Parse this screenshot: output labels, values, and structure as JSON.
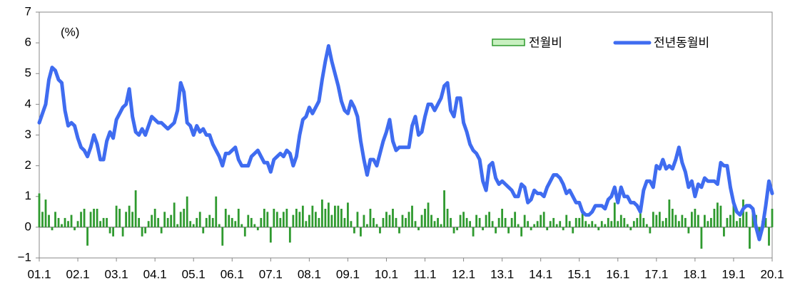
{
  "chart_data": {
    "type": "bar-line",
    "unit_label": "(%)",
    "categories": [
      "01.1",
      null,
      null,
      null,
      null,
      null,
      null,
      null,
      null,
      null,
      null,
      null,
      "02.1",
      null,
      null,
      null,
      null,
      null,
      null,
      null,
      null,
      null,
      null,
      null,
      "03.1",
      null,
      null,
      null,
      null,
      null,
      null,
      null,
      null,
      null,
      null,
      null,
      "04.1",
      null,
      null,
      null,
      null,
      null,
      null,
      null,
      null,
      null,
      null,
      null,
      "05.1",
      null,
      null,
      null,
      null,
      null,
      null,
      null,
      null,
      null,
      null,
      null,
      "06.1",
      null,
      null,
      null,
      null,
      null,
      null,
      null,
      null,
      null,
      null,
      null,
      "07.1",
      null,
      null,
      null,
      null,
      null,
      null,
      null,
      null,
      null,
      null,
      null,
      "08.1",
      null,
      null,
      null,
      null,
      null,
      null,
      null,
      null,
      null,
      null,
      null,
      "09.1",
      null,
      null,
      null,
      null,
      null,
      null,
      null,
      null,
      null,
      null,
      null,
      "10.1",
      null,
      null,
      null,
      null,
      null,
      null,
      null,
      null,
      null,
      null,
      null,
      "11.1",
      null,
      null,
      null,
      null,
      null,
      null,
      null,
      null,
      null,
      null,
      null,
      "12.1",
      null,
      null,
      null,
      null,
      null,
      null,
      null,
      null,
      null,
      null,
      null,
      "13.1",
      null,
      null,
      null,
      null,
      null,
      null,
      null,
      null,
      null,
      null,
      null,
      "14.1",
      null,
      null,
      null,
      null,
      null,
      null,
      null,
      null,
      null,
      null,
      null,
      "15.1",
      null,
      null,
      null,
      null,
      null,
      null,
      null,
      null,
      null,
      null,
      null,
      "16.1",
      null,
      null,
      null,
      null,
      null,
      null,
      null,
      null,
      null,
      null,
      null,
      "17.1",
      null,
      null,
      null,
      null,
      null,
      null,
      null,
      null,
      null,
      null,
      null,
      "18.1",
      null,
      null,
      null,
      null,
      null,
      null,
      null,
      null,
      null,
      null,
      null,
      "19.1",
      null,
      null,
      null,
      null,
      null,
      null,
      null,
      null,
      null,
      null,
      null,
      "20.1"
    ],
    "series": [
      {
        "name": "전월비",
        "kind": "bar",
        "color": "#2f9a2f",
        "values": [
          1.1,
          0.5,
          0.9,
          0.4,
          -0.1,
          0.5,
          0.3,
          0.1,
          0.3,
          0.2,
          0.4,
          -0.1,
          0.2,
          0.5,
          0.6,
          -0.6,
          0.5,
          0.6,
          0.6,
          0.2,
          0.3,
          0.3,
          -0.2,
          -0.3,
          0.7,
          0.6,
          -0.3,
          0.5,
          0.7,
          0.5,
          1.2,
          0.3,
          -0.3,
          -0.2,
          0.2,
          0.4,
          0.6,
          0.3,
          -0.2,
          0.5,
          0.3,
          0.4,
          0.8,
          0.1,
          0.5,
          0.6,
          1.0,
          0.2,
          0.1,
          0.3,
          0.5,
          -0.2,
          0.3,
          0.4,
          0.3,
          1.0,
          0.1,
          -0.6,
          0.6,
          0.4,
          0.3,
          0.2,
          0.6,
          0.1,
          -0.3,
          0.4,
          0.3,
          0.1,
          -0.1,
          0.3,
          0.6,
          0.5,
          -0.5,
          0.6,
          0.5,
          0.3,
          0.5,
          0.6,
          -0.5,
          0.4,
          0.6,
          0.5,
          0.7,
          0.2,
          0.4,
          0.7,
          0.5,
          0.3,
          0.9,
          0.6,
          0.8,
          0.4,
          0.7,
          0.7,
          0.6,
          0.3,
          0.8,
          0.2,
          -0.2,
          0.5,
          -0.3,
          0.4,
          0.1,
          0.6,
          0.3,
          0.1,
          -0.2,
          0.3,
          0.5,
          0.4,
          0.6,
          0.3,
          -0.2,
          0.4,
          0.3,
          0.5,
          0.7,
          0.2,
          -0.1,
          0.4,
          0.6,
          0.8,
          0.4,
          0.2,
          0.3,
          0.1,
          1.2,
          0.6,
          0.3,
          -0.2,
          -0.1,
          0.4,
          0.5,
          0.3,
          0.2,
          -0.3,
          0.4,
          0.3,
          -0.1,
          0.4,
          0.5,
          0.2,
          -0.2,
          0.3,
          0.6,
          0.3,
          -0.2,
          0.3,
          0.5,
          0.1,
          -0.3,
          0.4,
          0.2,
          -0.1,
          0.1,
          0.2,
          0.4,
          0.5,
          -0.1,
          0.2,
          0.3,
          0.1,
          0.2,
          -0.1,
          0.4,
          0.2,
          -0.2,
          0.3,
          0.3,
          0.5,
          0.2,
          0.1,
          0.2,
          0.1,
          -0.1,
          0.2,
          0.1,
          0.3,
          0.2,
          0.8,
          0.2,
          0.4,
          0.3,
          0.1,
          -0.1,
          0.2,
          0.3,
          0.6,
          0.3,
          0.1,
          -0.2,
          0.5,
          0.4,
          0.5,
          0.2,
          0.3,
          0.9,
          0.6,
          0.4,
          0.2,
          0.4,
          0.3,
          -0.2,
          0.5,
          0.6,
          0.4,
          -0.7,
          0.4,
          0.2,
          0.3,
          0.6,
          0.8,
          0.7,
          -0.3,
          0.3,
          0.4,
          0.8,
          0.2,
          0.3,
          0.9,
          0.5,
          -0.7,
          0.6,
          0.4,
          -0.2,
          0.2,
          0.3,
          -0.6,
          0.6
        ]
      },
      {
        "name": "전년동월비",
        "kind": "line",
        "color": "#3f6cf0",
        "values": [
          3.4,
          3.7,
          4.0,
          4.8,
          5.2,
          5.1,
          4.8,
          4.7,
          3.8,
          3.3,
          3.4,
          3.3,
          2.9,
          2.6,
          2.5,
          2.3,
          2.6,
          3.0,
          2.7,
          2.2,
          2.2,
          2.8,
          3.1,
          2.9,
          3.5,
          3.7,
          3.9,
          4.0,
          4.5,
          3.6,
          3.1,
          3.0,
          3.2,
          3.0,
          3.3,
          3.6,
          3.5,
          3.4,
          3.4,
          3.3,
          3.2,
          3.3,
          3.4,
          3.8,
          4.7,
          4.4,
          3.4,
          3.3,
          3.0,
          3.3,
          3.1,
          3.2,
          3.0,
          3.0,
          2.7,
          2.5,
          2.3,
          2.0,
          2.4,
          2.4,
          2.5,
          2.6,
          2.2,
          2.0,
          2.0,
          2.0,
          2.3,
          2.4,
          2.5,
          2.3,
          2.1,
          2.1,
          1.8,
          2.2,
          2.3,
          2.4,
          2.3,
          2.5,
          2.4,
          2.0,
          2.3,
          3.0,
          3.5,
          3.6,
          3.9,
          3.7,
          3.9,
          4.1,
          4.8,
          5.4,
          5.9,
          5.4,
          5.0,
          4.6,
          4.1,
          3.8,
          3.7,
          4.1,
          3.9,
          3.6,
          2.8,
          2.2,
          1.7,
          2.2,
          2.2,
          2.0,
          2.4,
          2.8,
          3.1,
          3.5,
          2.8,
          2.5,
          2.6,
          2.6,
          2.6,
          2.6,
          3.3,
          3.6,
          3.0,
          3.1,
          3.6,
          4.0,
          4.0,
          3.8,
          4.0,
          4.2,
          4.6,
          4.7,
          3.8,
          3.6,
          4.2,
          4.2,
          3.4,
          3.1,
          2.7,
          2.5,
          2.4,
          2.2,
          1.5,
          1.2,
          2.0,
          2.1,
          1.6,
          1.4,
          1.5,
          1.4,
          1.3,
          1.2,
          1.0,
          1.0,
          1.4,
          1.3,
          0.8,
          0.9,
          1.2,
          1.1,
          1.1,
          1.0,
          1.3,
          1.5,
          1.7,
          1.7,
          1.6,
          1.4,
          1.1,
          1.2,
          1.0,
          0.8,
          0.8,
          0.5,
          0.4,
          0.4,
          0.5,
          0.7,
          0.7,
          0.7,
          0.6,
          0.9,
          1.0,
          1.3,
          0.8,
          1.3,
          1.0,
          1.0,
          0.8,
          0.8,
          0.7,
          0.5,
          1.2,
          1.5,
          1.5,
          1.3,
          2.0,
          1.9,
          2.2,
          1.9,
          2.0,
          1.9,
          2.2,
          2.6,
          2.1,
          1.8,
          1.3,
          1.5,
          1.0,
          1.4,
          1.3,
          1.6,
          1.5,
          1.5,
          1.5,
          1.4,
          2.1,
          2.0,
          2.0,
          1.3,
          0.8,
          0.5,
          0.4,
          0.6,
          0.7,
          0.7,
          0.6,
          0.0,
          -0.4,
          0.0,
          0.7,
          1.5,
          1.1
        ]
      }
    ],
    "ylim": [
      -1,
      7
    ],
    "yticks": [
      {
        "value": -1,
        "label": "−1"
      },
      0,
      1,
      2,
      3,
      4,
      5,
      6,
      7
    ]
  }
}
